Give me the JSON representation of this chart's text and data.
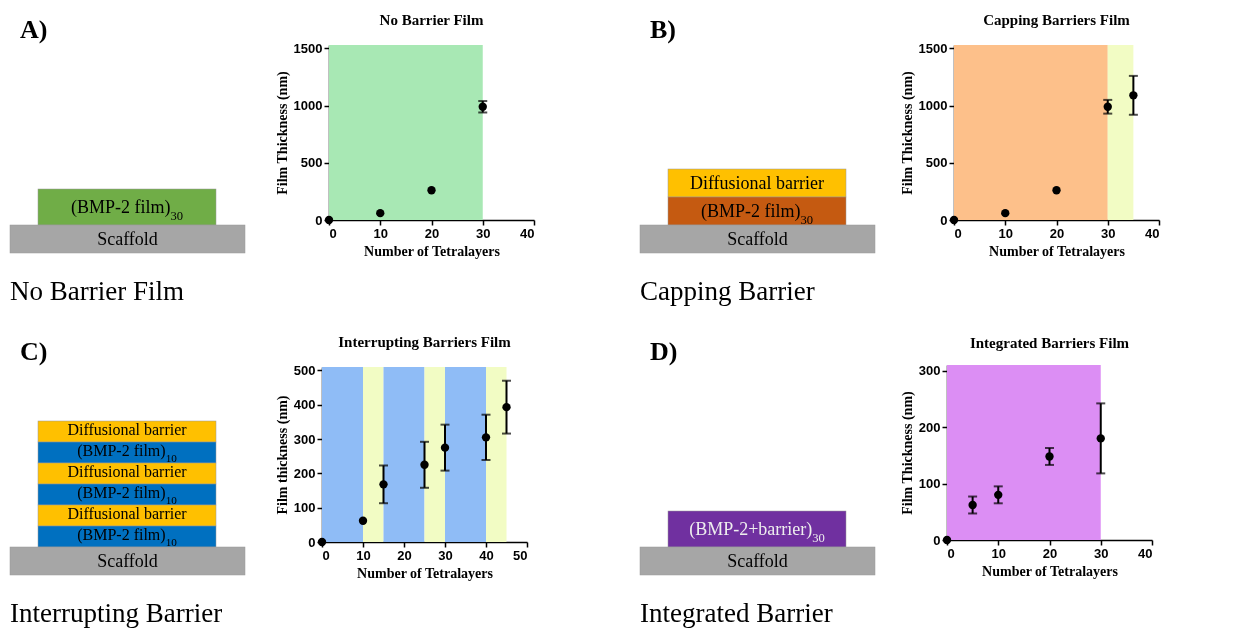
{
  "chart_data": [
    {
      "type": "other",
      "title": "No Barrier  Film",
      "annotations": [
        "A)",
        "(BMP-2 film)$_{30}$",
        "Scaffold"
      ],
      "colors": [
        "#70ad47",
        "#a6a6a6"
      ]
    },
    {
      "type": "scatter",
      "title": "No Barrier Film",
      "xlabel": "Number of Tetralayers",
      "ylabel": "Film Thickness (nm)",
      "x": [
        0,
        10,
        20,
        30
      ],
      "values": [
        0,
        60,
        260,
        990
      ],
      "errors": [
        null,
        null,
        null,
        50
      ],
      "color": "#000000",
      "marker": "circle",
      "xlim": [
        0,
        40
      ],
      "xticks": [
        0,
        10,
        20,
        30,
        40
      ],
      "ylim": [
        0,
        1530
      ],
      "yticks": [
        0,
        500,
        1000,
        1500
      ],
      "bands": [
        {
          "axis": "x",
          "from": 0,
          "to": 30,
          "color": "#a8e8b4"
        }
      ]
    },
    {
      "type": "other",
      "title": "Capping Barrier",
      "annotations": [
        "B)",
        "Diffusional barrier",
        "(BMP-2 film)$_{30}$",
        "Scaffold"
      ],
      "colors": [
        "#ffc000",
        "#c55a11",
        "#a6a6a6"
      ]
    },
    {
      "type": "scatter",
      "title": "Capping Barriers Film",
      "xlabel": "Number of Tetralayers",
      "ylabel": "Film Thickness (nm)",
      "x": [
        0,
        10,
        20,
        30,
        35
      ],
      "values": [
        0,
        60,
        260,
        990,
        1090
      ],
      "errors": [
        null,
        null,
        null,
        60,
        170
      ],
      "color": "#000000",
      "marker": "circle",
      "xlim": [
        0,
        40
      ],
      "xticks": [
        0,
        10,
        20,
        30,
        40
      ],
      "ylim": [
        0,
        1530
      ],
      "yticks": [
        0,
        500,
        1000,
        1500
      ],
      "bands": [
        {
          "axis": "x",
          "from": 0,
          "to": 30,
          "color": "#fdc08a"
        },
        {
          "axis": "x",
          "from": 30,
          "to": 35,
          "color": "#f2fcc4"
        }
      ]
    },
    {
      "type": "other",
      "title": "Interrupting Barrier",
      "annotations": [
        "C)",
        "Diffusional barrier",
        "(BMP-2 film)$_{10}$",
        "Diffusional barrier",
        "(BMP-2 film)$_{10}$",
        "Diffusional barrier",
        "(BMP-2 film)$_{10}$",
        "Scaffold"
      ],
      "colors": [
        "#ffc000",
        "#0070c0",
        "#ffc000",
        "#0070c0",
        "#ffc000",
        "#0070c0",
        "#a6a6a6"
      ]
    },
    {
      "type": "scatter",
      "title": "Interrupting Barriers Film",
      "xlabel": "Number of Tetralayers",
      "ylabel": "Film thickness (nm)",
      "x": [
        0,
        10,
        15,
        25,
        30,
        40,
        45
      ],
      "values": [
        0,
        62,
        168,
        225,
        275,
        305,
        393
      ],
      "errors": [
        null,
        null,
        55,
        67,
        67,
        66,
        77
      ],
      "color": "#000000",
      "marker": "circle",
      "xlim": [
        0,
        50
      ],
      "xticks": [
        0,
        10,
        20,
        30,
        40,
        50
      ],
      "ylim": [
        0,
        510
      ],
      "yticks": [
        0,
        100,
        200,
        300,
        400,
        500
      ],
      "bands": [
        {
          "axis": "x",
          "from": 0,
          "to": 10,
          "color": "#8fbcf6"
        },
        {
          "axis": "x",
          "from": 10,
          "to": 15,
          "color": "#f2fcc4"
        },
        {
          "axis": "x",
          "from": 15,
          "to": 25,
          "color": "#8fbcf6"
        },
        {
          "axis": "x",
          "from": 25,
          "to": 30,
          "color": "#f2fcc4"
        },
        {
          "axis": "x",
          "from": 30,
          "to": 40,
          "color": "#8fbcf6"
        },
        {
          "axis": "x",
          "from": 40,
          "to": 45,
          "color": "#f2fcc4"
        }
      ]
    },
    {
      "type": "other",
      "title": "Integrated Barrier",
      "annotations": [
        "D)",
        "(BMP-2+barrier)$_{30}$",
        "Scaffold"
      ],
      "colors": [
        "#7030a0",
        "#a6a6a6"
      ]
    },
    {
      "type": "scatter",
      "title": "Integrated Barriers Film",
      "xlabel": "Number of Tetralayers",
      "ylabel": "Film Thickness (nm)",
      "x": [
        0,
        5,
        10,
        20,
        30
      ],
      "values": [
        0,
        62,
        80,
        148,
        180
      ],
      "errors": [
        null,
        15,
        15,
        15,
        62
      ],
      "color": "#000000",
      "marker": "circle",
      "xlim": [
        0,
        40
      ],
      "xticks": [
        0,
        10,
        20,
        30,
        40
      ],
      "ylim": [
        0,
        310
      ],
      "yticks": [
        0,
        100,
        200,
        300
      ],
      "bands": [
        {
          "axis": "x",
          "from": 0,
          "to": 30,
          "color": "#dc8ef4"
        }
      ]
    }
  ]
}
